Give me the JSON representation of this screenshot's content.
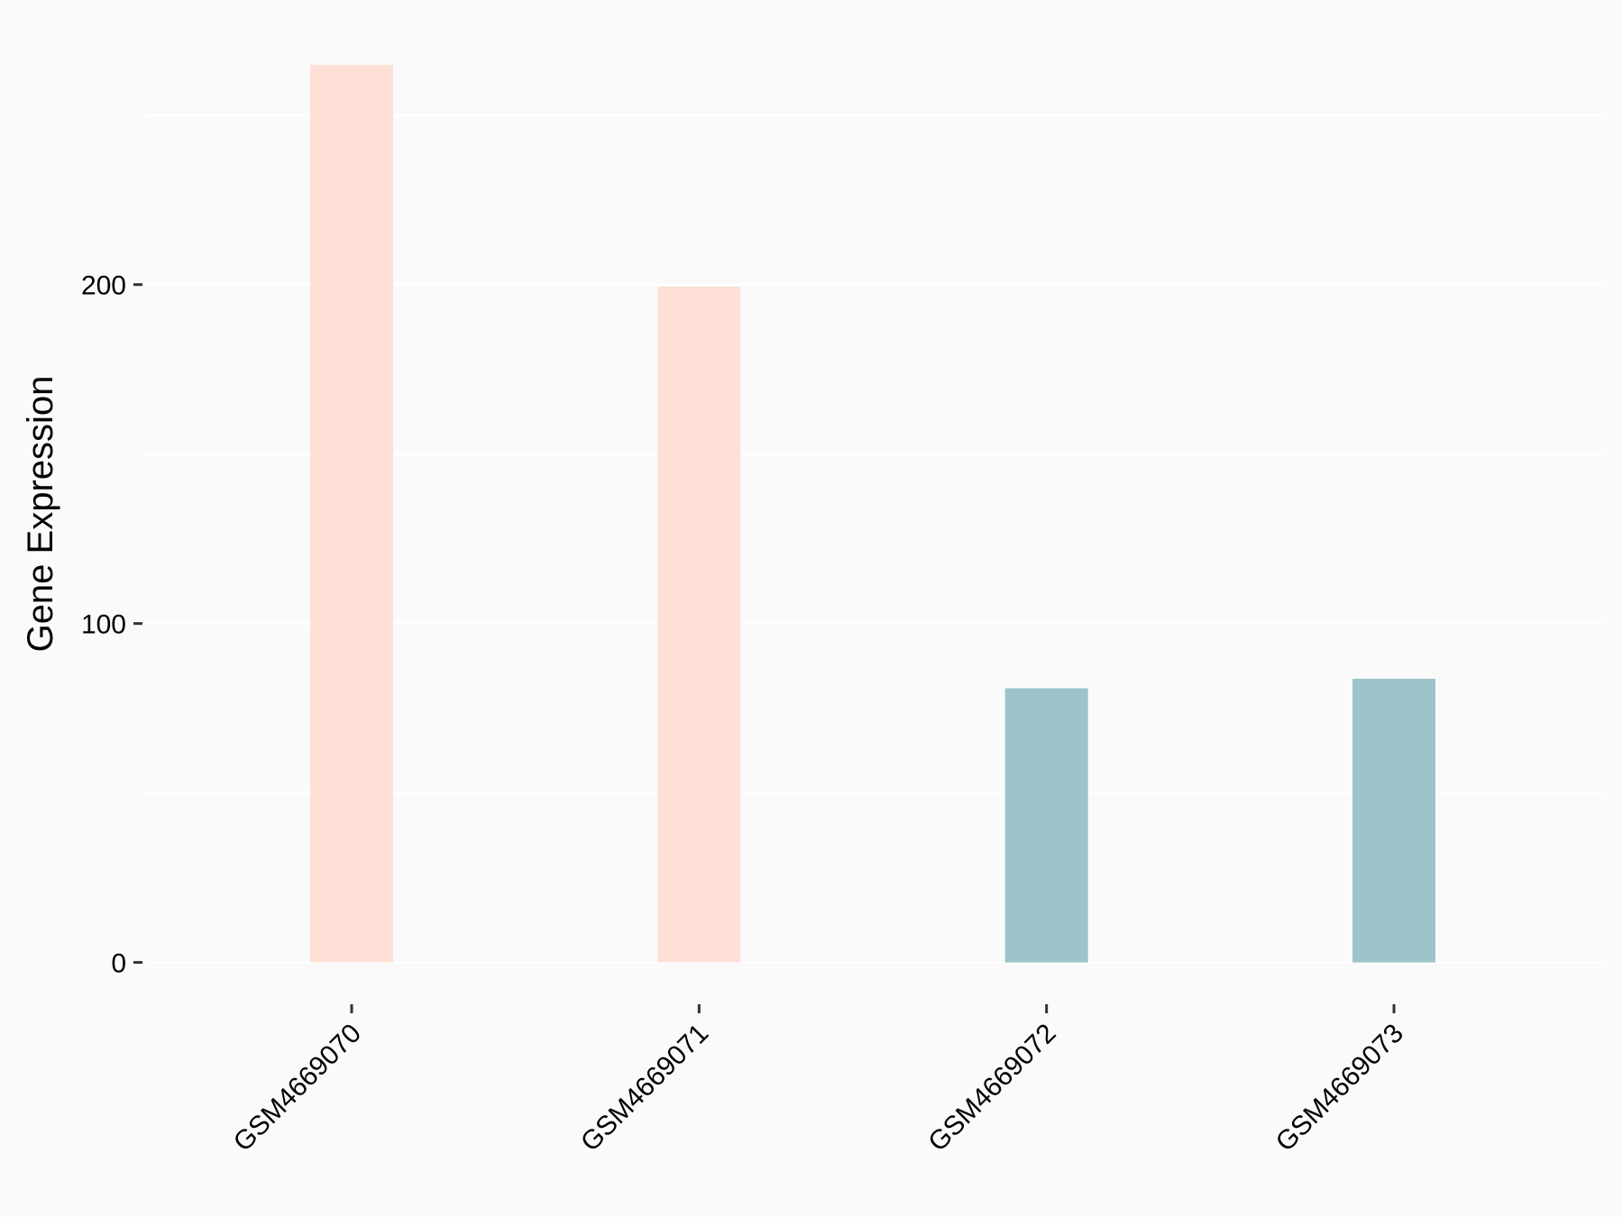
{
  "chart_data": {
    "type": "bar",
    "title": "",
    "xlabel": "",
    "ylabel": "Gene Expression",
    "categories": [
      "GSM4669070",
      "GSM4669071",
      "GSM4669072",
      "GSM4669073"
    ],
    "values": [
      264.8,
      199.4,
      80.9,
      83.7
    ],
    "bar_colors": [
      "#FEE0D6",
      "#FEE0D6",
      "#9DC4C8",
      "#9DC4C8"
    ],
    "ylim": [
      -12,
      280
    ],
    "yticks": [
      0,
      100,
      200
    ],
    "ytick_labels": [
      "0",
      "100",
      "200"
    ],
    "minor_gridlines": [
      50,
      150,
      250
    ],
    "grid": true,
    "legend": "none",
    "background": "#FAFAFA",
    "gridline_color": "#FFFFFF"
  }
}
